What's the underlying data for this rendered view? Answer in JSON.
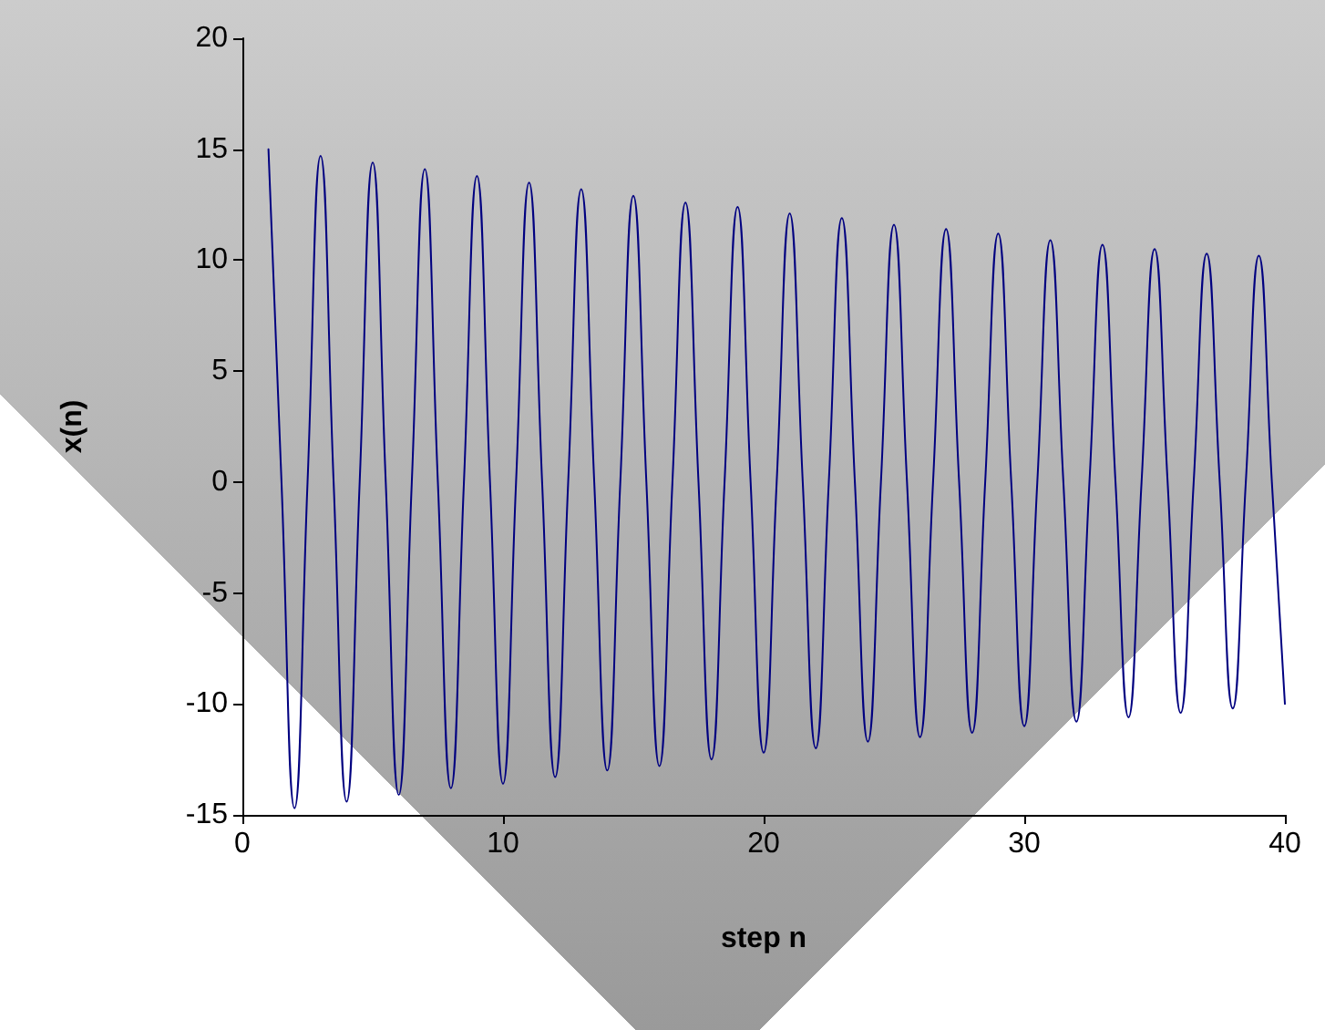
{
  "chart_data": {
    "type": "line",
    "xlabel": "step n",
    "ylabel": "x(n)",
    "x": [
      1,
      1.5,
      2,
      2.5,
      3,
      3.5,
      4,
      4.5,
      5,
      5.5,
      6,
      6.5,
      7,
      7.5,
      8,
      8.5,
      9,
      9.5,
      10,
      10.5,
      11,
      11.5,
      12,
      12.5,
      13,
      13.5,
      14,
      14.5,
      15,
      15.5,
      16,
      16.5,
      17,
      17.5,
      18,
      18.5,
      19,
      19.5,
      20,
      20.5,
      21,
      21.5,
      22,
      22.5,
      23,
      23.5,
      24,
      24.5,
      25,
      25.5,
      26,
      26.5,
      27,
      27.5,
      28,
      28.5,
      29,
      29.5,
      30,
      30.5,
      31,
      31.5,
      32,
      32.5,
      33,
      33.5,
      34,
      34.5,
      35,
      35.5,
      36,
      36.5,
      37,
      37.5,
      38,
      38.5,
      39,
      39.5,
      40
    ],
    "series": [
      {
        "color": "#000080",
        "values": [
          15,
          0,
          -14.7,
          0,
          14.7,
          0,
          -14.4,
          0,
          14.4,
          0,
          -14.1,
          0,
          14.1,
          0,
          -13.8,
          0,
          13.8,
          0,
          -13.6,
          0,
          13.5,
          0,
          -13.3,
          0,
          13.2,
          0,
          -13,
          0,
          12.9,
          0,
          -12.8,
          0,
          12.6,
          0,
          -12.5,
          0,
          12.4,
          0,
          -12.2,
          0,
          12.1,
          0,
          -12,
          0,
          11.9,
          0,
          -11.7,
          0,
          11.6,
          0,
          -11.5,
          0,
          11.4,
          0,
          -11.3,
          0,
          11.2,
          0,
          -11,
          0,
          10.9,
          0,
          -10.8,
          0,
          10.7,
          0,
          -10.6,
          0,
          10.5,
          0,
          -10.4,
          0,
          10.3,
          0,
          -10.2,
          0,
          10.2,
          0,
          -10
        ]
      }
    ],
    "xlim": [
      0,
      40
    ],
    "xticks": [
      0,
      10,
      20,
      30,
      40
    ],
    "ylim": [
      -15,
      20
    ],
    "yticks": [
      -15,
      -10,
      -5,
      0,
      5,
      10,
      15,
      20
    ],
    "marker": "none",
    "line_style": "solid"
  }
}
